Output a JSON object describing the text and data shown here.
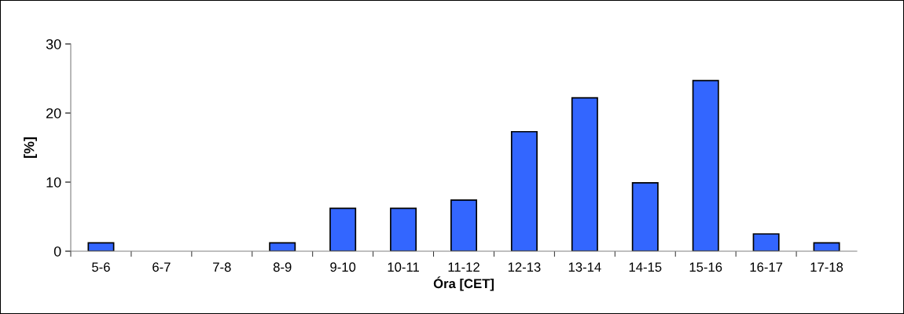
{
  "chart_data": {
    "type": "bar",
    "xlabel": "Óra [CET]",
    "ylabel": "[%]",
    "categories": [
      "5-6",
      "6-7",
      "7-8",
      "8-9",
      "9-10",
      "10-11",
      "11-12",
      "12-13",
      "13-14",
      "14-15",
      "15-16",
      "16-17",
      "17-18"
    ],
    "values": [
      1.2,
      0,
      0,
      1.2,
      6.2,
      6.2,
      7.4,
      17.3,
      22.2,
      9.9,
      24.7,
      2.5,
      1.2
    ],
    "color": "#3366ff",
    "ylim": [
      0,
      30
    ],
    "yticks": [
      0,
      10,
      20,
      30
    ],
    "grid": false,
    "legend": false
  }
}
